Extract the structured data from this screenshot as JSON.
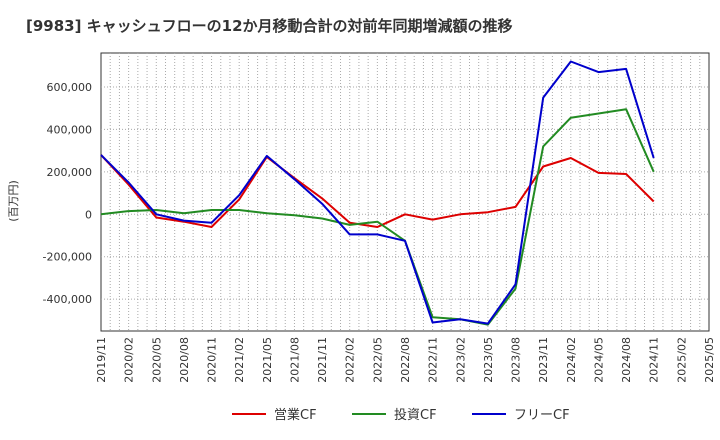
{
  "chart_data": {
    "type": "line",
    "title": "[9983]  キャッシュフローの12か月移動合計の対前年同期増減額の推移",
    "ylabel": "(百万円)",
    "xlabel": "",
    "x_tick_labels": [
      "2019/11",
      "2020/02",
      "2020/05",
      "2020/08",
      "2020/11",
      "2021/02",
      "2021/05",
      "2021/08",
      "2021/11",
      "2022/02",
      "2022/05",
      "2022/08",
      "2022/11",
      "2023/02",
      "2023/05",
      "2023/08",
      "2023/11",
      "2024/02",
      "2024/05",
      "2024/08",
      "2024/11",
      "2025/02",
      "2025/05"
    ],
    "y_ticks": [
      -400000,
      -200000,
      0,
      200000,
      400000,
      600000
    ],
    "y_tick_labels": [
      "-400,000",
      "-200,000",
      "0",
      "200,000",
      "400,000",
      "600,000"
    ],
    "ylim": [
      -550000,
      760000
    ],
    "grid": true,
    "legend_position": "bottom",
    "series": [
      {
        "name": "営業CF",
        "color": "#dd0000",
        "values": [
          280000,
          140000,
          -15000,
          -35000,
          -60000,
          70000,
          270000,
          170000,
          75000,
          -40000,
          -60000,
          0,
          -25000,
          0,
          10000,
          35000,
          225000,
          265000,
          195000,
          190000,
          60000
        ]
      },
      {
        "name": "投資CF",
        "color": "#228b22",
        "values": [
          0,
          15000,
          20000,
          5000,
          20000,
          20000,
          5000,
          -5000,
          -20000,
          -50000,
          -35000,
          -125000,
          -485000,
          -495000,
          -520000,
          -350000,
          320000,
          455000,
          475000,
          495000,
          200000
        ]
      },
      {
        "name": "フリーCF",
        "color": "#0000cc",
        "values": [
          280000,
          150000,
          0,
          -30000,
          -40000,
          90000,
          275000,
          165000,
          50000,
          -95000,
          -95000,
          -125000,
          -510000,
          -495000,
          -515000,
          -330000,
          550000,
          720000,
          670000,
          685000,
          265000
        ]
      }
    ]
  }
}
